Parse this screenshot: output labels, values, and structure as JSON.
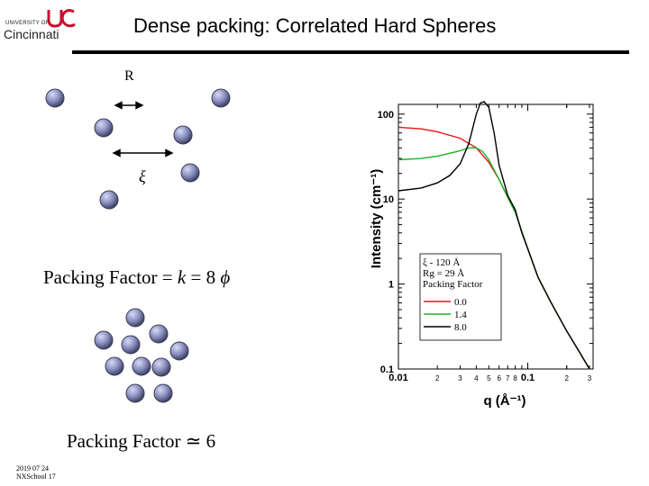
{
  "header": {
    "logo_small": "UNIVERSITY OF",
    "logo_name": "Cincinnati",
    "title": "Dense packing:  Correlated Hard Spheres"
  },
  "diagram": {
    "r_label": "R",
    "xi_label": "ξ",
    "packing_dilute": {
      "prefix": "Packing Factor = ",
      "k": "k",
      "rest": " = 8 ",
      "phi": "ϕ"
    },
    "packing_dense": "Packing Factor ≃ 6",
    "colors": {
      "sphere_fill": "#8a8fc0",
      "sphere_edge": "#3a3c55"
    }
  },
  "footer": {
    "date": "2019 07 24",
    "event": "NXSchool 17"
  },
  "chart_data": {
    "type": "line",
    "title": "",
    "xlabel": "q (Å⁻¹)",
    "ylabel": "Intensity  (cm⁻¹)",
    "xscale": "log",
    "yscale": "log",
    "xlim": [
      0.01,
      0.32
    ],
    "ylim": [
      0.1,
      130
    ],
    "x_ticks": [
      "0.01",
      "2",
      "3",
      "4",
      "5",
      "6",
      "7",
      "8",
      "0.1",
      "2",
      "3"
    ],
    "y_ticks": [
      "100",
      "10",
      "1",
      "0.1"
    ],
    "legend": {
      "position": "inside-right",
      "lines": [
        "ξ - 120  Å",
        "Rg = 29  Å",
        "Packing Factor"
      ]
    },
    "series": [
      {
        "name": "0.0",
        "color": "#e8141b",
        "x": [
          0.01,
          0.015,
          0.02,
          0.03,
          0.04,
          0.05,
          0.06,
          0.07,
          0.08,
          0.1,
          0.12,
          0.15,
          0.2,
          0.25,
          0.3
        ],
        "y": [
          70,
          67,
          62,
          52,
          40,
          27,
          17,
          10.5,
          7,
          2.6,
          1.2,
          0.62,
          0.28,
          0.16,
          0.1
        ]
      },
      {
        "name": "1.4",
        "color": "#19b526",
        "x": [
          0.01,
          0.015,
          0.02,
          0.03,
          0.035,
          0.04,
          0.045,
          0.05,
          0.06,
          0.07,
          0.08,
          0.1,
          0.12,
          0.15,
          0.2,
          0.25,
          0.3
        ],
        "y": [
          29,
          30,
          32,
          37,
          40,
          40,
          36,
          29,
          17,
          10.5,
          7,
          2.6,
          1.2,
          0.62,
          0.28,
          0.16,
          0.1
        ]
      },
      {
        "name": "8.0",
        "color": "#000000",
        "x": [
          0.01,
          0.015,
          0.02,
          0.025,
          0.03,
          0.035,
          0.04,
          0.043,
          0.046,
          0.05,
          0.055,
          0.06,
          0.07,
          0.08,
          0.09,
          0.1,
          0.12,
          0.15,
          0.2,
          0.25,
          0.3
        ],
        "y": [
          12.5,
          13.5,
          15.5,
          19,
          26,
          45,
          100,
          135,
          140,
          120,
          60,
          25,
          11,
          7.5,
          4,
          2.6,
          1.2,
          0.62,
          0.28,
          0.16,
          0.1
        ]
      }
    ]
  }
}
